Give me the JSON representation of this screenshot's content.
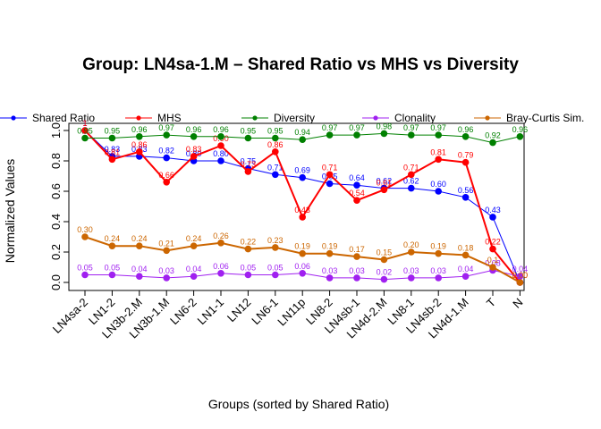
{
  "chart_data": {
    "type": "line",
    "title": "Group: LN4sa-1.M – Shared Ratio vs MHS vs Diversity",
    "xlabel": "Groups (sorted by Shared Ratio)",
    "ylabel": "Normalized Values",
    "ylim": [
      0,
      1
    ],
    "yticks": [
      "0.0",
      "0.2",
      "0.4",
      "0.6",
      "0.8",
      "1.0"
    ],
    "grid": false,
    "legend_position": "top",
    "categories": [
      "LN4sa-2",
      "LN1-2",
      "LN3b-2.M",
      "LN3b-1.M",
      "LN6-2",
      "LN1-1",
      "LN12",
      "LN6-1",
      "LN11p",
      "LN8-2",
      "LN4sb-1",
      "LN4d-2.M",
      "LN8-1",
      "LN4sb-2",
      "LN4d-1.M",
      "T",
      "N"
    ],
    "series": [
      {
        "name": "Shared Ratio",
        "color": "#0000FF",
        "values": [
          1.0,
          0.83,
          0.83,
          0.82,
          0.8,
          0.8,
          0.75,
          0.71,
          0.69,
          0.65,
          0.64,
          0.62,
          0.62,
          0.6,
          0.56,
          0.43,
          0.0
        ],
        "labels": [
          "1",
          "0.83",
          "0.83",
          "0.82",
          "0.80",
          "0.80",
          "0.75",
          "0.71",
          "0.69",
          "0.65",
          "0.64",
          "0.62",
          "0.62",
          "0.60",
          "0.56",
          "0.43",
          ""
        ]
      },
      {
        "name": "MHS",
        "color": "#FF0000",
        "values": [
          1.0,
          0.81,
          0.86,
          0.66,
          0.83,
          0.9,
          0.73,
          0.86,
          0.43,
          0.71,
          0.54,
          0.61,
          0.71,
          0.81,
          0.79,
          0.22,
          0.0
        ],
        "labels": [
          "1",
          "0.81",
          "0.86",
          "0.66",
          "0.83",
          "0.90",
          "0.73",
          "0.86",
          "0.43",
          "0.71",
          "0.54",
          "0.61",
          "0.71",
          "0.81",
          "0.79",
          "0.22",
          "0.00"
        ]
      },
      {
        "name": "Diversity",
        "color": "#008000",
        "values": [
          0.95,
          0.95,
          0.96,
          0.97,
          0.96,
          0.96,
          0.95,
          0.95,
          0.94,
          0.97,
          0.97,
          0.98,
          0.97,
          0.97,
          0.96,
          0.92,
          0.96
        ],
        "labels": [
          "0.95",
          "0.95",
          "0.96",
          "0.97",
          "0.96",
          "0.96",
          "0.95",
          "0.95",
          "0.94",
          "0.97",
          "0.97",
          "0.98",
          "0.97",
          "0.97",
          "0.96",
          "0.92",
          "0.96"
        ]
      },
      {
        "name": "Clonality",
        "color": "#A020F0",
        "values": [
          0.05,
          0.05,
          0.04,
          0.03,
          0.04,
          0.06,
          0.05,
          0.05,
          0.06,
          0.03,
          0.03,
          0.02,
          0.03,
          0.03,
          0.04,
          0.08,
          0.04
        ],
        "labels": [
          "0.05",
          "0.05",
          "0.04",
          "0.03",
          "0.04",
          "0.06",
          "0.05",
          "0.05",
          "0.06",
          "0.03",
          "0.03",
          "0.02",
          "0.03",
          "0.03",
          "0.04",
          "0.08",
          "0.04"
        ]
      },
      {
        "name": "Bray-Curtis Sim.",
        "color": "#CC6600",
        "values": [
          0.3,
          0.24,
          0.24,
          0.21,
          0.24,
          0.26,
          0.22,
          0.23,
          0.19,
          0.19,
          0.17,
          0.15,
          0.2,
          0.19,
          0.18,
          0.1,
          0.0
        ],
        "labels": [
          "0.30",
          "0.24",
          "0.24",
          "0.21",
          "0.24",
          "0.26",
          "0.22",
          "0.23",
          "0.19",
          "0.19",
          "0.17",
          "0.15",
          "0.20",
          "0.19",
          "0.18",
          "0.1",
          "0.00"
        ]
      }
    ]
  }
}
